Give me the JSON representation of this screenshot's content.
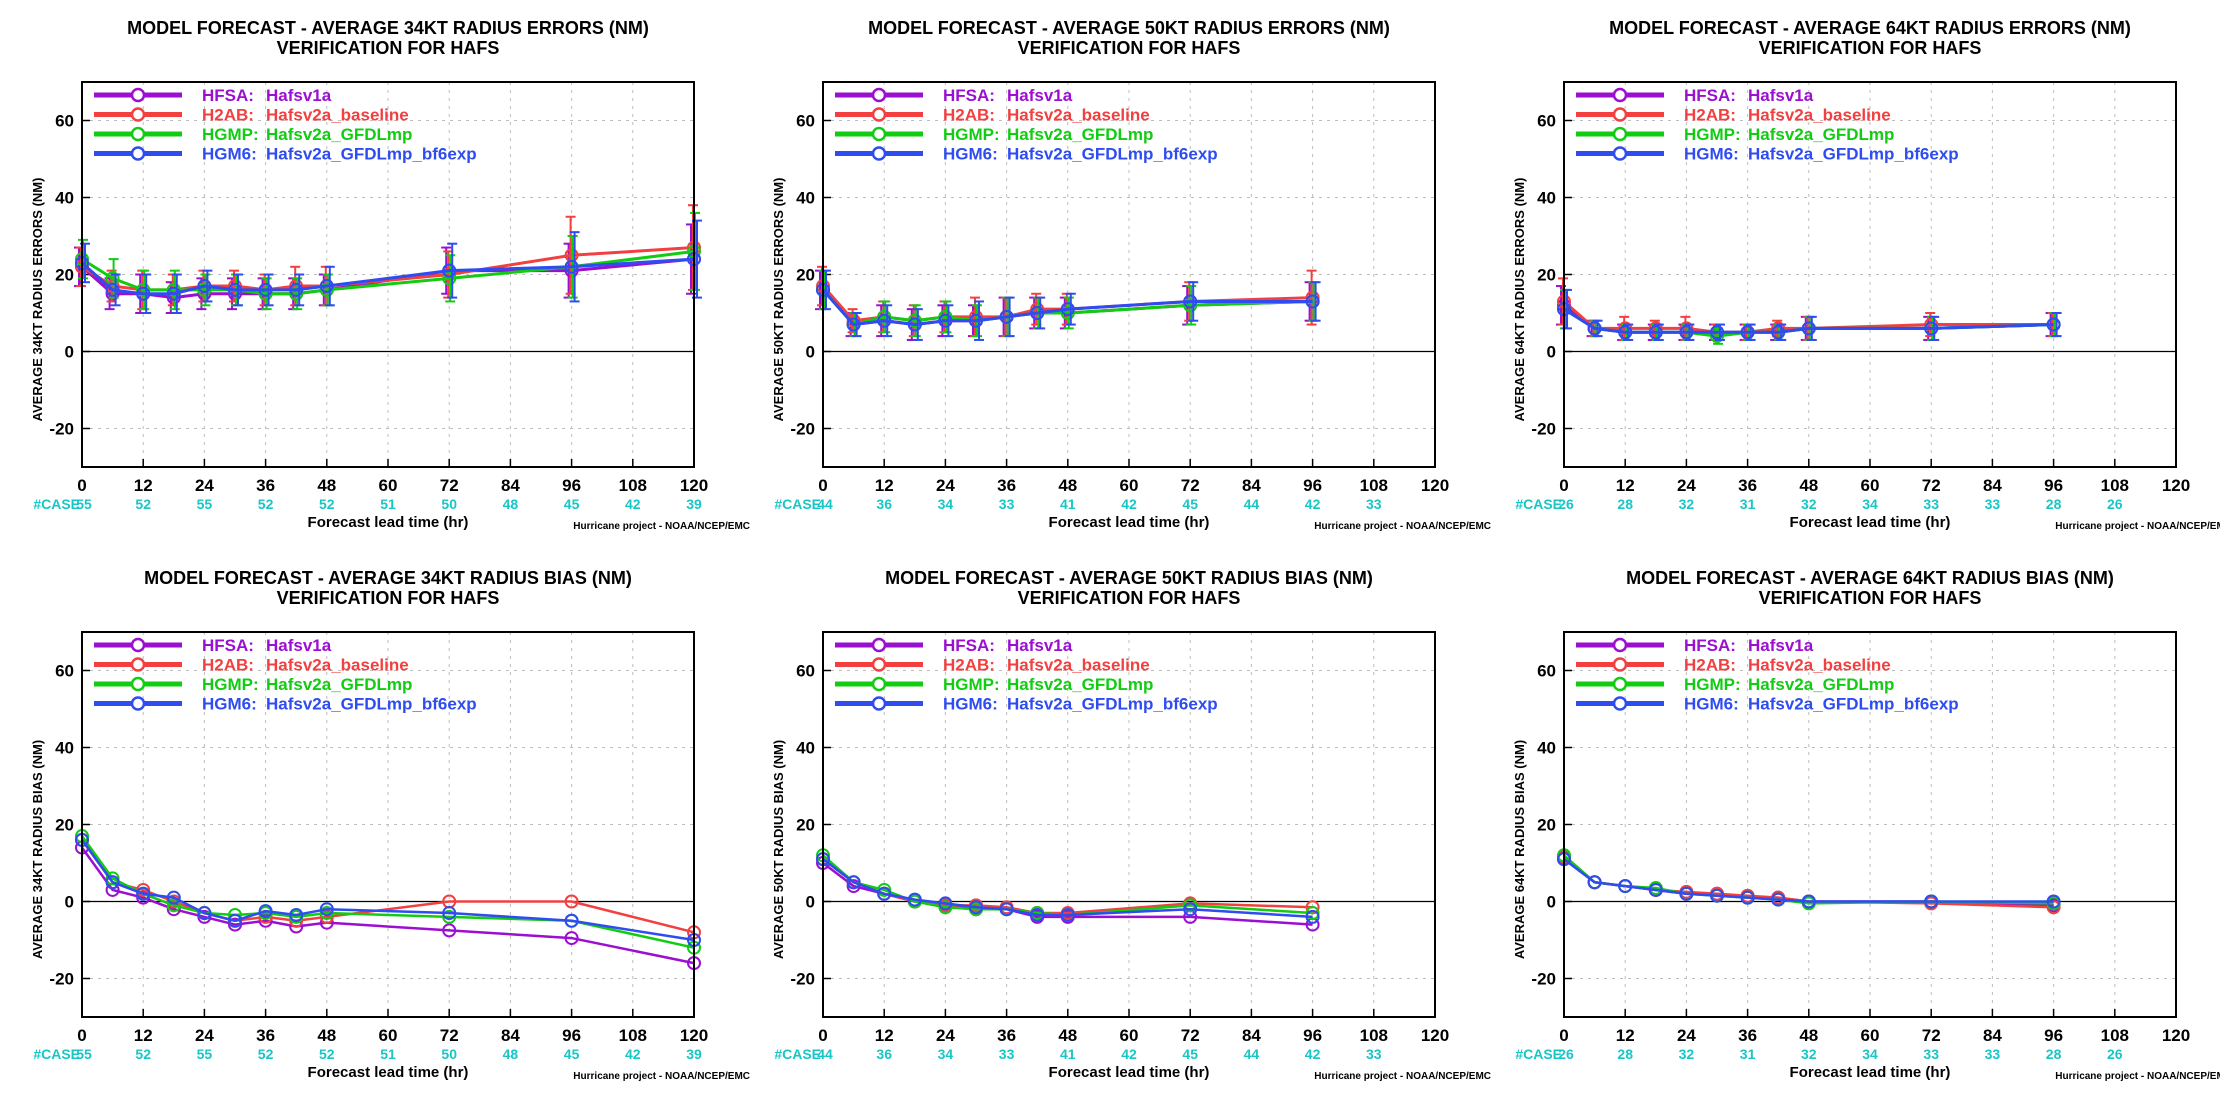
{
  "colors": {
    "HFSA": "#9b0fd1",
    "H2AB": "#f24040",
    "HGMP": "#12cc12",
    "HGM6": "#2e4cf0",
    "case": "#19c6c6",
    "grid": "#bdbdbd"
  },
  "common": {
    "subtitle": "VERIFICATION FOR HAFS",
    "xlabel": "Forecast lead time (hr)",
    "credit": "Hurricane project - NOAA/NCEP/EMC",
    "case_label": "#CASE",
    "legend": [
      {
        "code": "HFSA:",
        "name": "Hafsv1a"
      },
      {
        "code": "H2AB:",
        "name": "Hafsv2a_baseline"
      },
      {
        "code": "HGMP:",
        "name": "Hafsv2a_GFDLmp"
      },
      {
        "code": "HGM6:",
        "name": "Hafsv2a_GFDLmp_bf6exp"
      }
    ],
    "xticks": [
      "0",
      "12",
      "24",
      "36",
      "48",
      "60",
      "72",
      "84",
      "96",
      "108",
      "120"
    ],
    "yticks": [
      "-20",
      "0",
      "20",
      "40",
      "60"
    ],
    "xlim": [
      0,
      120
    ],
    "ylim": [
      -30,
      70
    ]
  },
  "chart_data": [
    {
      "type": "line",
      "title": "MODEL FORECAST - AVERAGE 34KT RADIUS ERRORS (NM)",
      "ylabel": "AVERAGE 34KT RADIUS ERRORS (NM)",
      "cases": [
        [
          "0",
          "55"
        ],
        [
          "12",
          "52"
        ],
        [
          "24",
          "55"
        ],
        [
          "36",
          "52"
        ],
        [
          "48",
          "52"
        ],
        [
          "60",
          "51"
        ],
        [
          "72",
          "50"
        ],
        [
          "84",
          "48"
        ],
        [
          "96",
          "45"
        ],
        [
          "108",
          "42"
        ],
        [
          "120",
          "39"
        ]
      ],
      "x": [
        0,
        6,
        12,
        18,
        24,
        30,
        36,
        42,
        48,
        72,
        96,
        120
      ],
      "error_bars": true,
      "series": [
        {
          "name": "HFSA",
          "values": [
            22,
            15,
            15,
            14,
            15,
            15,
            15,
            15,
            16,
            21,
            21,
            24
          ],
          "err": [
            5,
            4,
            5,
            4,
            4,
            4,
            4,
            4,
            4,
            6,
            7,
            9
          ]
        },
        {
          "name": "H2AB",
          "values": [
            22,
            17,
            16,
            16,
            17,
            17,
            16,
            17,
            17,
            20,
            25,
            27
          ],
          "err": [
            5,
            4,
            5,
            4,
            4,
            4,
            4,
            5,
            5,
            6,
            10,
            11
          ]
        },
        {
          "name": "HGMP",
          "values": [
            24,
            19,
            16,
            16,
            16,
            16,
            15,
            15,
            16,
            19,
            22,
            26
          ],
          "err": [
            5,
            5,
            5,
            5,
            4,
            4,
            4,
            4,
            4,
            6,
            8,
            10
          ]
        },
        {
          "name": "HGM6",
          "values": [
            23,
            16,
            15,
            15,
            17,
            16,
            16,
            16,
            17,
            21,
            22,
            24
          ],
          "err": [
            5,
            4,
            5,
            5,
            4,
            4,
            4,
            4,
            5,
            7,
            9,
            10
          ]
        }
      ]
    },
    {
      "type": "line",
      "title": "MODEL FORECAST - AVERAGE 50KT RADIUS ERRORS (NM)",
      "ylabel": "AVERAGE 50KT RADIUS ERRORS (NM)",
      "cases": [
        [
          "0",
          "44"
        ],
        [
          "12",
          "36"
        ],
        [
          "24",
          "34"
        ],
        [
          "36",
          "33"
        ],
        [
          "48",
          "41"
        ],
        [
          "60",
          "42"
        ],
        [
          "72",
          "45"
        ],
        [
          "84",
          "44"
        ],
        [
          "96",
          "42"
        ],
        [
          "108",
          "33"
        ]
      ],
      "x": [
        0,
        6,
        12,
        18,
        24,
        30,
        36,
        42,
        48,
        72,
        96
      ],
      "error_bars": true,
      "series": [
        {
          "name": "HFSA",
          "values": [
            16,
            7,
            8,
            7,
            8,
            8,
            9,
            10,
            10,
            12,
            13
          ],
          "err": [
            5,
            3,
            4,
            4,
            4,
            4,
            5,
            4,
            4,
            5,
            5
          ]
        },
        {
          "name": "H2AB",
          "values": [
            17,
            8,
            9,
            8,
            9,
            9,
            9,
            11,
            11,
            13,
            14
          ],
          "err": [
            5,
            3,
            4,
            4,
            4,
            5,
            5,
            4,
            4,
            5,
            7
          ]
        },
        {
          "name": "HGMP",
          "values": [
            16,
            7,
            9,
            8,
            9,
            8,
            9,
            10,
            10,
            12,
            13
          ],
          "err": [
            5,
            3,
            4,
            4,
            4,
            4,
            5,
            4,
            4,
            5,
            5
          ]
        },
        {
          "name": "HGM6",
          "values": [
            16,
            7,
            8,
            7,
            8,
            8,
            9,
            10,
            11,
            13,
            13
          ],
          "err": [
            5,
            3,
            4,
            4,
            4,
            5,
            5,
            4,
            4,
            5,
            5
          ]
        }
      ]
    },
    {
      "type": "line",
      "title": "MODEL FORECAST - AVERAGE 64KT RADIUS ERRORS (NM)",
      "ylabel": "AVERAGE 64KT RADIUS ERRORS (NM)",
      "cases": [
        [
          "0",
          "26"
        ],
        [
          "12",
          "28"
        ],
        [
          "24",
          "32"
        ],
        [
          "36",
          "31"
        ],
        [
          "48",
          "32"
        ],
        [
          "60",
          "34"
        ],
        [
          "72",
          "33"
        ],
        [
          "84",
          "33"
        ],
        [
          "96",
          "28"
        ],
        [
          "108",
          "26"
        ]
      ],
      "x": [
        0,
        6,
        12,
        18,
        24,
        30,
        36,
        42,
        48,
        72,
        96
      ],
      "error_bars": true,
      "series": [
        {
          "name": "HFSA",
          "values": [
            12,
            6,
            5,
            5,
            5,
            5,
            5,
            5,
            6,
            6,
            7
          ],
          "err": [
            5,
            2,
            2,
            2,
            2,
            2,
            2,
            2,
            3,
            3,
            3
          ]
        },
        {
          "name": "H2AB",
          "values": [
            13,
            6,
            6,
            6,
            6,
            5,
            5,
            6,
            6,
            7,
            7
          ],
          "err": [
            6,
            2,
            3,
            2,
            3,
            2,
            2,
            2,
            3,
            3,
            3
          ]
        },
        {
          "name": "HGMP",
          "values": [
            11,
            6,
            5,
            5,
            5,
            4,
            5,
            5,
            6,
            6,
            7
          ],
          "err": [
            5,
            2,
            2,
            2,
            2,
            2,
            2,
            2,
            3,
            3,
            3
          ]
        },
        {
          "name": "HGM6",
          "values": [
            11,
            6,
            5,
            5,
            5,
            5,
            5,
            5,
            6,
            6,
            7
          ],
          "err": [
            5,
            2,
            2,
            2,
            2,
            2,
            2,
            2,
            3,
            3,
            3
          ]
        }
      ]
    },
    {
      "type": "line",
      "title": "MODEL FORECAST - AVERAGE 34KT RADIUS BIAS (NM)",
      "ylabel": "AVERAGE 34KT RADIUS BIAS (NM)",
      "cases": [
        [
          "0",
          "55"
        ],
        [
          "12",
          "52"
        ],
        [
          "24",
          "55"
        ],
        [
          "36",
          "52"
        ],
        [
          "48",
          "52"
        ],
        [
          "60",
          "51"
        ],
        [
          "72",
          "50"
        ],
        [
          "84",
          "48"
        ],
        [
          "96",
          "45"
        ],
        [
          "108",
          "42"
        ],
        [
          "120",
          "39"
        ]
      ],
      "x": [
        0,
        6,
        12,
        18,
        24,
        30,
        36,
        42,
        48,
        72,
        96,
        120
      ],
      "error_bars": false,
      "series": [
        {
          "name": "HFSA",
          "values": [
            14,
            3,
            1,
            -2,
            -4,
            -6,
            -5,
            -6.5,
            -5.5,
            -7.5,
            -9.5,
            -16
          ]
        },
        {
          "name": "H2AB",
          "values": [
            16,
            5,
            3,
            0,
            -3,
            -5,
            -4,
            -5,
            -4,
            0,
            0,
            -8
          ]
        },
        {
          "name": "HGMP",
          "values": [
            17,
            6,
            2,
            -1,
            -3,
            -3.5,
            -3,
            -4,
            -3,
            -4,
            -5,
            -12
          ]
        },
        {
          "name": "HGM6",
          "values": [
            16,
            5,
            2,
            1,
            -3,
            -5,
            -2.5,
            -3.5,
            -2,
            -3,
            -5,
            -10
          ]
        }
      ]
    },
    {
      "type": "line",
      "title": "MODEL FORECAST - AVERAGE 50KT RADIUS BIAS (NM)",
      "ylabel": "AVERAGE 50KT RADIUS BIAS (NM)",
      "cases": [
        [
          "0",
          "44"
        ],
        [
          "12",
          "36"
        ],
        [
          "24",
          "34"
        ],
        [
          "36",
          "33"
        ],
        [
          "48",
          "41"
        ],
        [
          "60",
          "42"
        ],
        [
          "72",
          "45"
        ],
        [
          "84",
          "44"
        ],
        [
          "96",
          "42"
        ],
        [
          "108",
          "33"
        ]
      ],
      "x": [
        0,
        6,
        12,
        18,
        24,
        30,
        36,
        42,
        48,
        72,
        96
      ],
      "error_bars": false,
      "series": [
        {
          "name": "HFSA",
          "values": [
            10,
            4,
            2,
            0,
            -1,
            -2,
            -2,
            -4,
            -4,
            -4,
            -6
          ]
        },
        {
          "name": "H2AB",
          "values": [
            11,
            5,
            2,
            0,
            -1,
            -1,
            -1.5,
            -3,
            -3,
            -0.5,
            -1.5
          ]
        },
        {
          "name": "HGMP",
          "values": [
            12,
            5,
            3,
            0,
            -1.5,
            -2,
            -2,
            -3,
            -3.5,
            -1,
            -3
          ]
        },
        {
          "name": "HGM6",
          "values": [
            11,
            5,
            2,
            0.5,
            -0.5,
            -1.5,
            -2,
            -3.5,
            -3.5,
            -2,
            -4
          ]
        }
      ]
    },
    {
      "type": "line",
      "title": "MODEL FORECAST - AVERAGE 64KT RADIUS BIAS (NM)",
      "ylabel": "AVERAGE 64KT RADIUS BIAS (NM)",
      "cases": [
        [
          "0",
          "26"
        ],
        [
          "12",
          "28"
        ],
        [
          "24",
          "32"
        ],
        [
          "36",
          "31"
        ],
        [
          "48",
          "32"
        ],
        [
          "60",
          "34"
        ],
        [
          "72",
          "33"
        ],
        [
          "84",
          "33"
        ],
        [
          "96",
          "28"
        ],
        [
          "108",
          "26"
        ]
      ],
      "x": [
        0,
        6,
        12,
        18,
        24,
        30,
        36,
        42,
        48,
        72,
        96
      ],
      "error_bars": false,
      "series": [
        {
          "name": "HFSA",
          "values": [
            11,
            5,
            4,
            3,
            2,
            2,
            1,
            1,
            0,
            0,
            -1
          ]
        },
        {
          "name": "H2AB",
          "values": [
            11.5,
            5,
            4,
            3,
            2.5,
            2,
            1.5,
            1,
            0,
            -0.5,
            -1.5
          ]
        },
        {
          "name": "HGMP",
          "values": [
            12,
            5,
            4,
            3.5,
            2,
            1.5,
            1,
            0.5,
            -0.5,
            0,
            -0.5
          ]
        },
        {
          "name": "HGM6",
          "values": [
            11,
            5,
            4,
            3,
            2,
            1.5,
            1,
            0.5,
            0,
            0,
            0
          ]
        }
      ]
    }
  ]
}
